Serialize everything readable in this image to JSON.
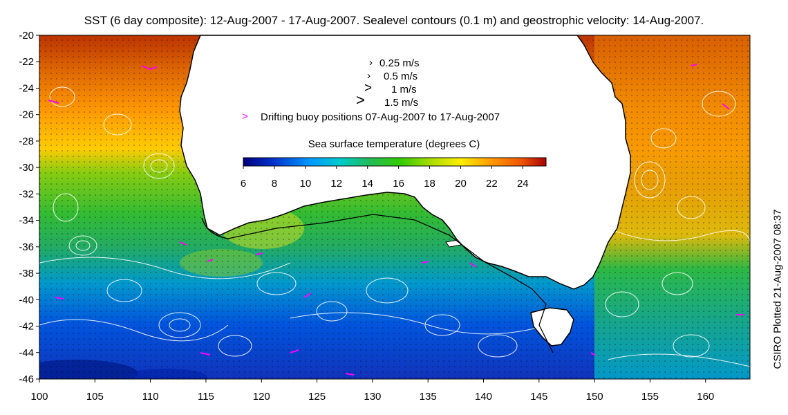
{
  "title": "SST (6 day composite): 12-Aug-2007 - 17-Aug-2007. Sealevel contours (0.1 m) and geostrophic velocity: 14-Aug-2007.",
  "credit": "CSIRO Plotted 21-Aug-2007 08:37",
  "velocity_legend": [
    {
      "label": "0.25 m/s"
    },
    {
      "label": "0.5 m/s"
    },
    {
      "label": "1 m/s"
    },
    {
      "label": "1.5 m/s"
    }
  ],
  "buoy_legend": "Drifting buoy positions 07-Aug-2007 to 17-Aug-2007",
  "colorbar": {
    "title": "Sea surface temperature (degrees C)",
    "ticks": [
      "6",
      "8",
      "10",
      "12",
      "14",
      "16",
      "18",
      "20",
      "22",
      "24"
    ],
    "min": 6,
    "max": 25.5,
    "colors": [
      "#00007f",
      "#0033cc",
      "#0099ff",
      "#00cccc",
      "#22bb55",
      "#33cc00",
      "#aadd00",
      "#ffee00",
      "#ff9900",
      "#ee5500",
      "#aa0000"
    ]
  },
  "axes": {
    "x_ticks": [
      "100",
      "105",
      "110",
      "115",
      "120",
      "125",
      "130",
      "135",
      "140",
      "145",
      "150",
      "155",
      "160"
    ],
    "y_ticks": [
      "-20",
      "-22",
      "-24",
      "-26",
      "-28",
      "-30",
      "-32",
      "-34",
      "-36",
      "-38",
      "-40",
      "-42",
      "-44",
      "-46"
    ],
    "lon_range": [
      100,
      164
    ],
    "lat_range": [
      -46,
      -20
    ]
  },
  "colors": {
    "land": "#ffffff",
    "coast": "#000000",
    "contour": "#ffffff",
    "buoy": "#ff00ff"
  }
}
